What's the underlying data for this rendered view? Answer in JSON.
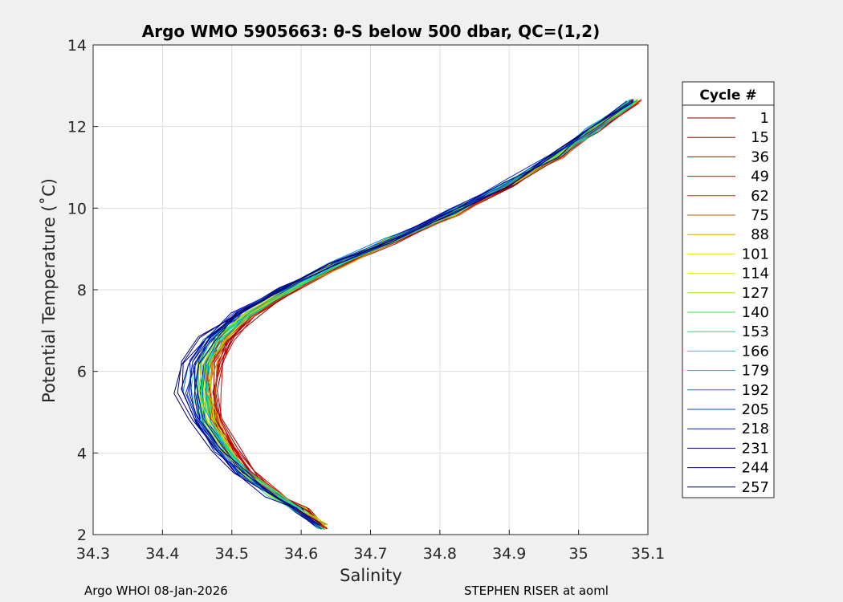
{
  "chart_data": {
    "type": "line",
    "title": "Argo WMO 5905663: θ-S below 500 dbar,  QC=(1,2)",
    "xlabel": "Salinity",
    "ylabel": "Potential Temperature (˚C)",
    "xlim": [
      34.3,
      35.1
    ],
    "ylim": [
      2,
      14
    ],
    "xticks": [
      "34.3",
      "34.4",
      "34.5",
      "34.6",
      "34.7",
      "34.8",
      "34.9",
      "35",
      "35.1"
    ],
    "yticks": [
      "2",
      "4",
      "6",
      "8",
      "10",
      "12",
      "14"
    ],
    "grid": true,
    "legend": {
      "title": "Cycle #",
      "placement": "outside-right",
      "entries": [
        {
          "label": "1",
          "color": "#800000"
        },
        {
          "label": "15",
          "color": "#a00000"
        },
        {
          "label": "36",
          "color": "#c00000"
        },
        {
          "label": "49",
          "color": "#e00000"
        },
        {
          "label": "62",
          "color": "#e02000"
        },
        {
          "label": "75",
          "color": "#c06000"
        },
        {
          "label": "88",
          "color": "#e0a000"
        },
        {
          "label": "101",
          "color": "#ffe000"
        },
        {
          "label": "114",
          "color": "#e0f000"
        },
        {
          "label": "127",
          "color": "#a0f000"
        },
        {
          "label": "140",
          "color": "#40e040"
        },
        {
          "label": "153",
          "color": "#20e080"
        },
        {
          "label": "166",
          "color": "#00e0c0"
        },
        {
          "label": "179",
          "color": "#00c0e0"
        },
        {
          "label": "192",
          "color": "#0080c0"
        },
        {
          "label": "205",
          "color": "#0040e0"
        },
        {
          "label": "218",
          "color": "#0020c0"
        },
        {
          "label": "231",
          "color": "#0000a0"
        },
        {
          "label": "244",
          "color": "#000080"
        },
        {
          "label": "257",
          "color": "#000060"
        }
      ]
    },
    "mean_profile": {
      "salinity": [
        34.63,
        34.6,
        34.56,
        34.52,
        34.49,
        34.465,
        34.455,
        34.46,
        34.48,
        34.52,
        34.58,
        34.65,
        34.73,
        34.82,
        34.9,
        34.97,
        35.02,
        35.08
      ],
      "temperature": [
        2.2,
        2.6,
        3.0,
        3.5,
        4.1,
        4.8,
        5.5,
        6.2,
        6.8,
        7.4,
        8.0,
        8.6,
        9.2,
        9.9,
        10.6,
        11.3,
        11.9,
        12.6
      ]
    }
  },
  "footer": {
    "left": "Argo WHOI 08-Jan-2026",
    "right": "STEPHEN RISER at aoml"
  }
}
